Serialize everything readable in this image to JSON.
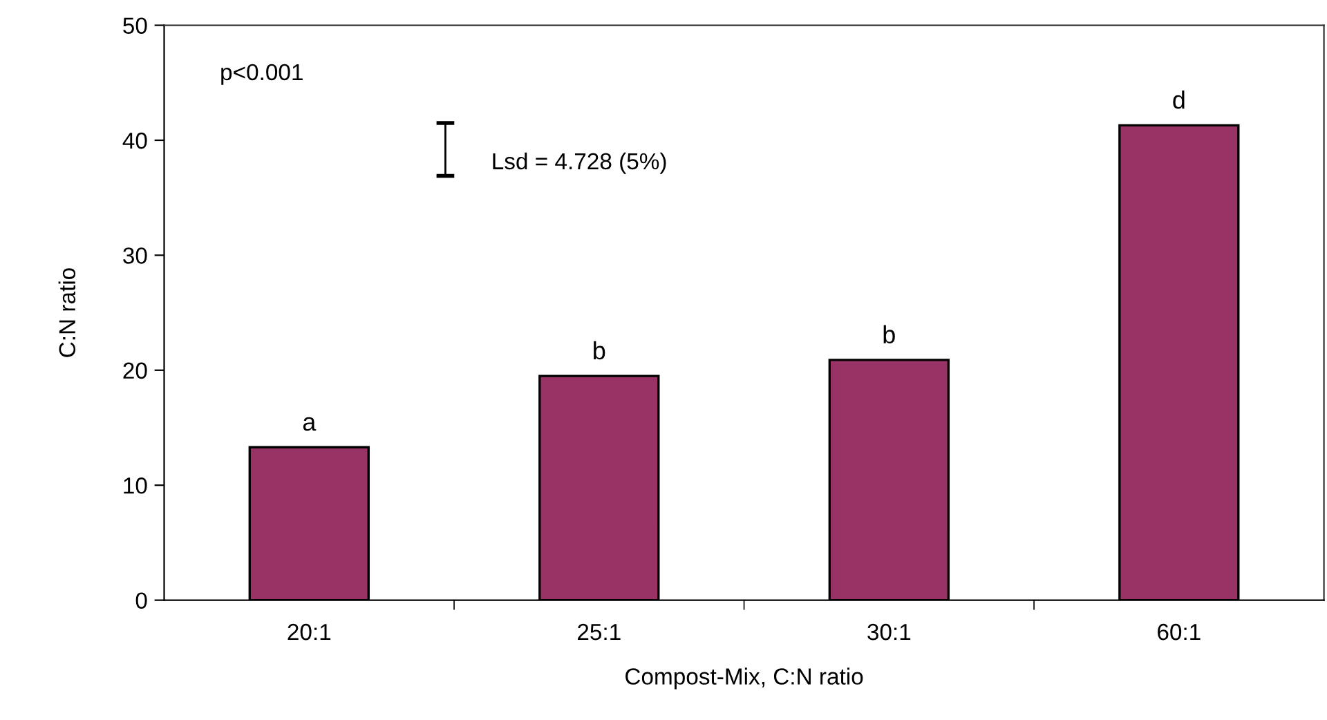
{
  "chart_data": {
    "type": "bar",
    "xlabel": "Compost-Mix, C:N ratio",
    "ylabel": "C:N ratio",
    "categories": [
      "20:1",
      "25:1",
      "30:1",
      "60:1"
    ],
    "values": [
      13.3,
      19.5,
      20.9,
      41.3
    ],
    "value_labels": [
      "a",
      "b",
      "b",
      "d"
    ],
    "color": "#993366",
    "ylim": [
      0,
      50
    ],
    "yticks": [
      0,
      10,
      20,
      30,
      40,
      50
    ],
    "grid": false,
    "annotations": [
      "p<0.001",
      "Lsd = 4.728 (5%)"
    ]
  }
}
